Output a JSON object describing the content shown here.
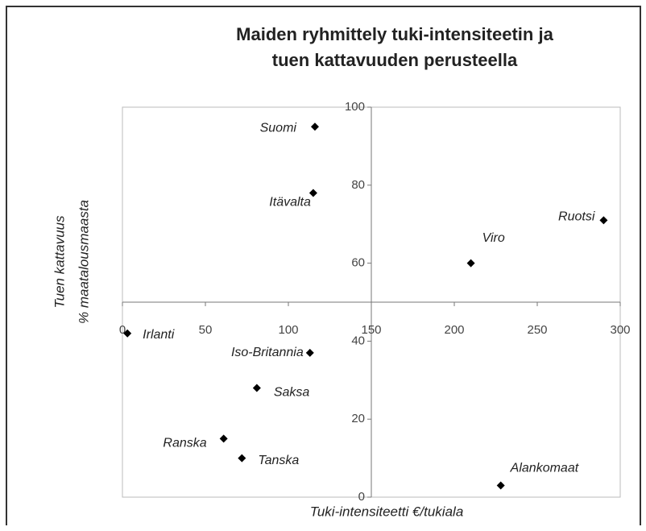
{
  "chart_data": {
    "type": "scatter",
    "title": [
      "Maiden ryhmittely tuki-intensiteetin ja",
      "tuen kattavuuden perusteella"
    ],
    "x_label": "Tuki-intensiteetti €/tukiala",
    "y_label": [
      "Tuen kattavuus",
      "% maatalousmaasta"
    ],
    "xlim": [
      0,
      300
    ],
    "xticks": [
      0,
      50,
      100,
      150,
      200,
      250,
      300
    ],
    "ylim": [
      0,
      100
    ],
    "yticks": [
      0,
      20,
      40,
      60,
      80,
      100
    ],
    "x_axis_crosses": 50,
    "y_axis_crosses": 150,
    "color": "#000000",
    "series": [
      {
        "labels": [
          "Suomi",
          "Itävalta",
          "Ruotsi",
          "Viro",
          "Irlanti",
          "Iso-Britannia",
          "Saksa",
          "Ranska",
          "Tanska",
          "Alankomaat"
        ],
        "x": [
          116,
          115,
          290,
          210,
          3,
          113,
          81,
          61,
          72,
          228
        ],
        "values": [
          95,
          78,
          71,
          60,
          42,
          37,
          28,
          15,
          10,
          3
        ]
      }
    ]
  }
}
